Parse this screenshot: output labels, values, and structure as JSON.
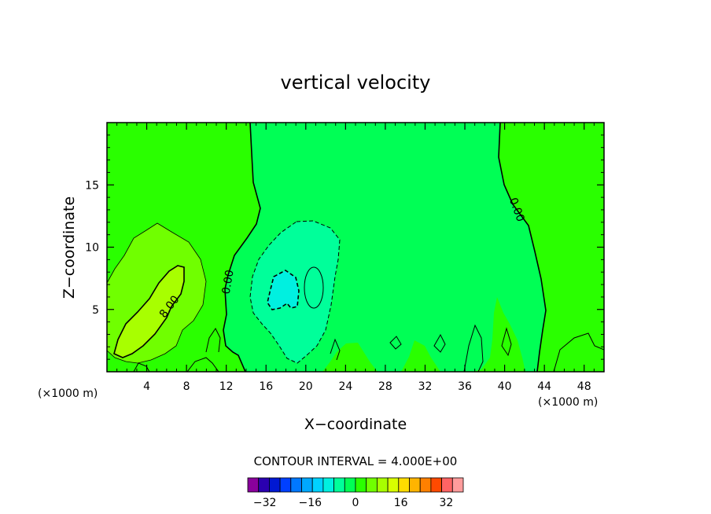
{
  "chart_data": {
    "type": "contour",
    "title": "vertical velocity",
    "xlabel": "X−coordinate",
    "ylabel": "Z−coordinate",
    "x_unit": "(×1000 m)",
    "y_unit": "(×1000 m)",
    "xlim": [
      0,
      50
    ],
    "ylim": [
      0,
      20
    ],
    "x_ticks": [
      4,
      8,
      12,
      16,
      20,
      24,
      28,
      32,
      36,
      40,
      44,
      48
    ],
    "x_tick_labels": [
      "4",
      "8",
      "12",
      "16",
      "20",
      "24",
      "28",
      "32",
      "36",
      "40",
      "44",
      "48"
    ],
    "y_ticks": [
      5,
      10,
      15
    ],
    "y_tick_labels": [
      "5",
      "10",
      "15"
    ],
    "contour_interval_text": "CONTOUR INTERVAL =  4.000E+00",
    "contour_labels": [
      {
        "text": "8.00",
        "x": 6.3,
        "z": 5.2
      },
      {
        "text": "0.00",
        "x": 12.2,
        "z": 7.2
      },
      {
        "text": "0.00",
        "x": 41.2,
        "z": 13.0
      }
    ],
    "colorbar": {
      "levels": [
        -38,
        -34,
        -30,
        -26,
        -22,
        -18,
        -14,
        -10,
        -6,
        -2,
        2,
        6,
        10,
        14,
        18,
        22,
        26,
        30,
        34,
        38
      ],
      "tick_values": [
        -32,
        -16,
        0,
        16,
        32
      ],
      "tick_labels": [
        "−32",
        "−16",
        "0",
        "16",
        "32"
      ],
      "colors": [
        "#8a009c",
        "#2a00b0",
        "#0018d2",
        "#0040ff",
        "#0078ff",
        "#00a8ff",
        "#00d2ff",
        "#00f0e0",
        "#00ff9a",
        "#00ff55",
        "#2aff00",
        "#70ff00",
        "#a8ff00",
        "#d8ff00",
        "#ffdc00",
        "#ffb400",
        "#ff8000",
        "#ff4a00",
        "#ff6464",
        "#ff9c9c"
      ]
    },
    "fields": {
      "background": "#2aff00",
      "center_band": "#00ff55",
      "updraft_inner": "#a8ff00",
      "updraft_outer": "#70ff00",
      "downdraft_outer": "#00ff9a",
      "downdraft_inner": "#00f0e0"
    }
  }
}
